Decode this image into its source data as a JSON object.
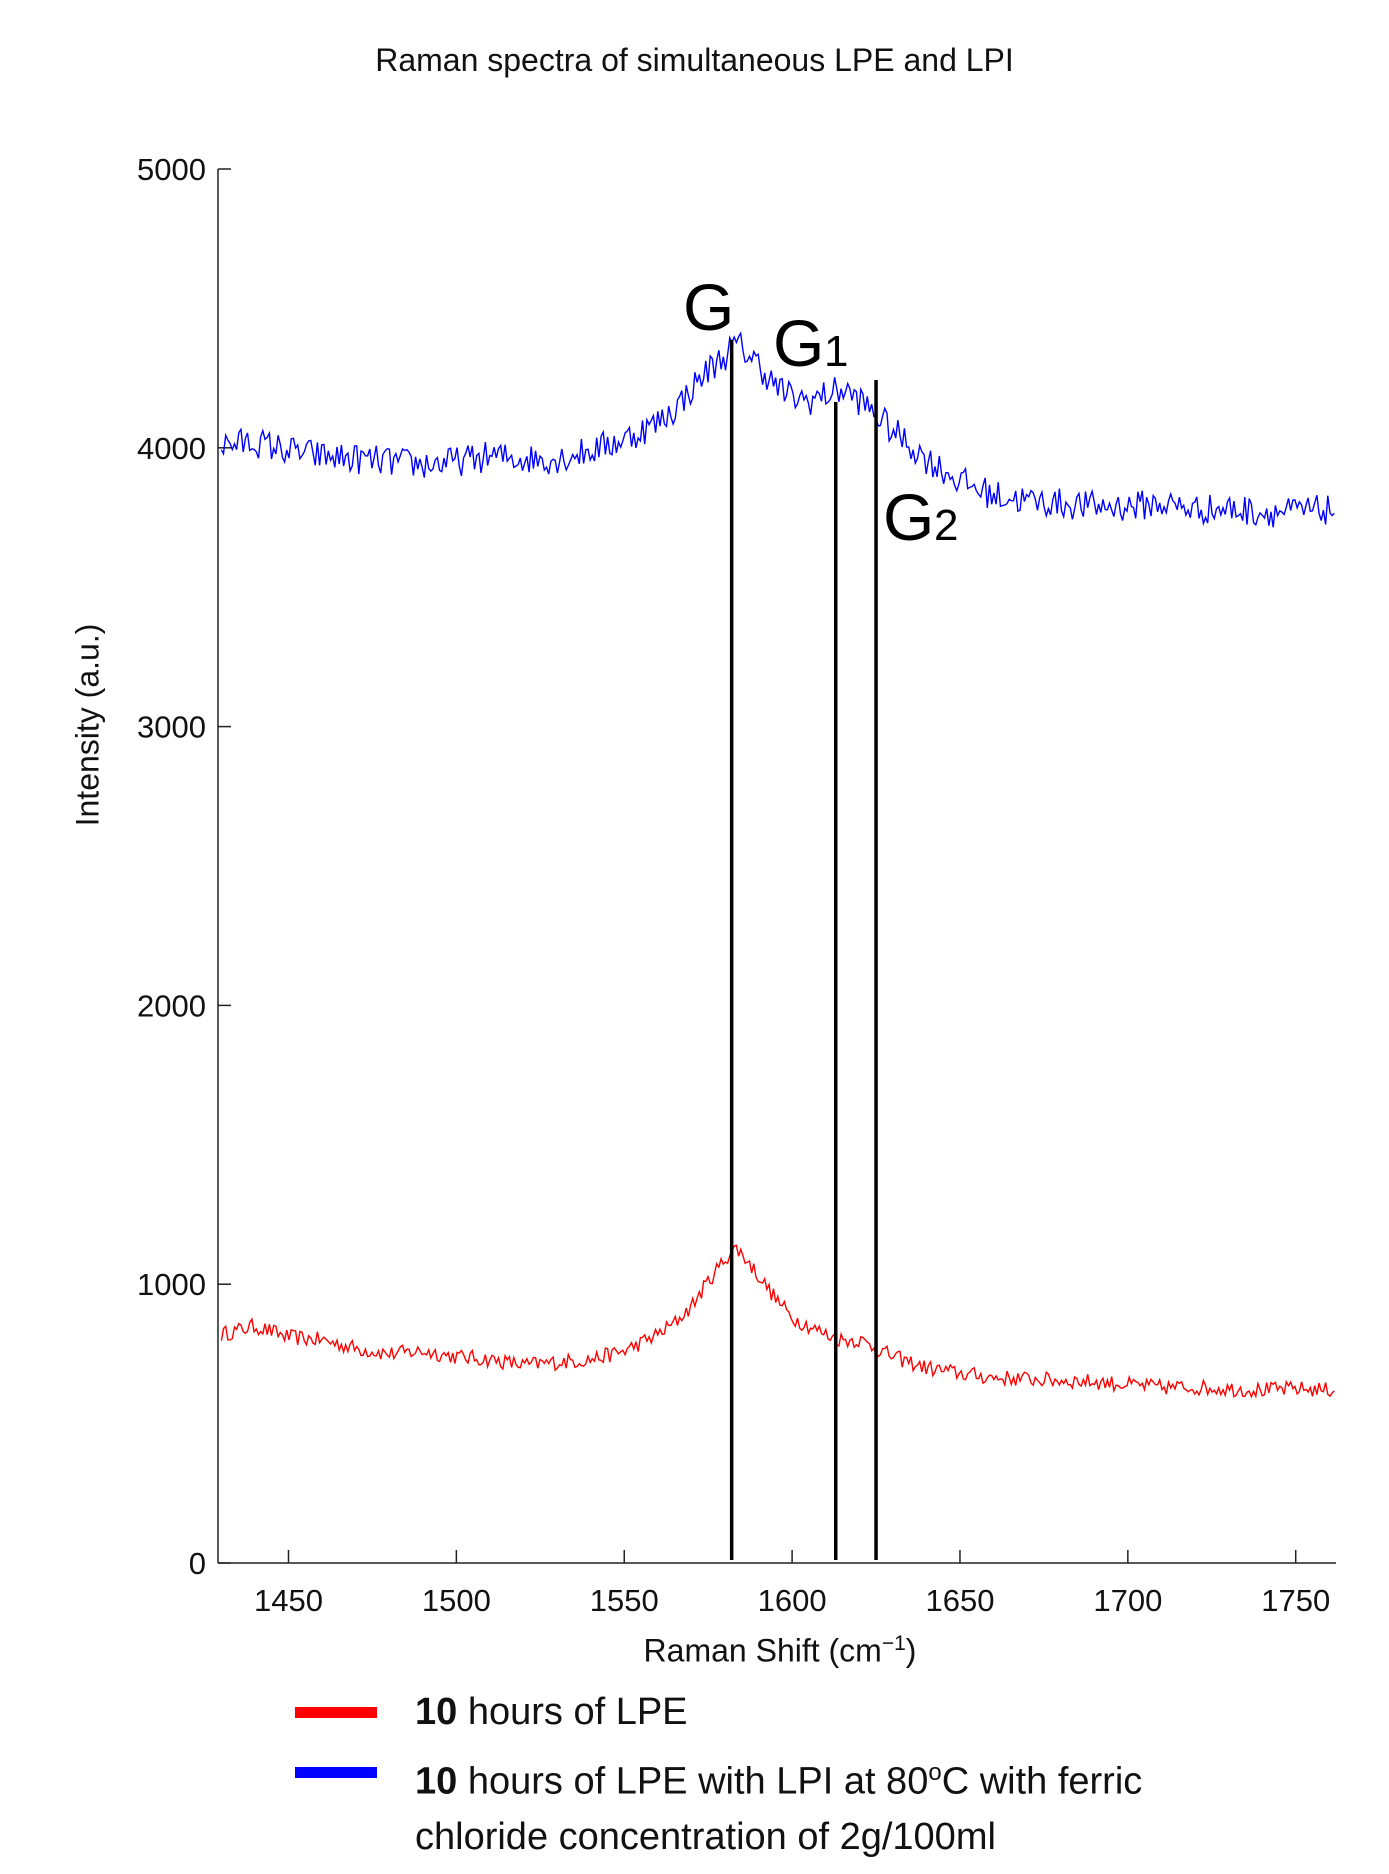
{
  "chart_data": {
    "type": "line",
    "title": "Raman spectra of simultaneous LPE and LPI",
    "xlabel": "Raman Shift (cm",
    "xlabel_exp": "−1",
    "xlabel_tail": ")",
    "ylabel": "Intensity (a.u.)",
    "xlim": [
      1429,
      1762
    ],
    "ylim": [
      0,
      5000
    ],
    "xticks": [
      1450,
      1500,
      1550,
      1600,
      1650,
      1700,
      1750
    ],
    "yticks": [
      0,
      1000,
      2000,
      3000,
      4000,
      5000
    ],
    "grid": false,
    "legend_position": "bottom",
    "series": [
      {
        "name_bold": "10",
        "name": " hours of LPE",
        "color": "#ff0000",
        "x": [
          1430,
          1440,
          1450,
          1460,
          1470,
          1480,
          1490,
          1500,
          1510,
          1520,
          1530,
          1540,
          1550,
          1555,
          1560,
          1565,
          1570,
          1575,
          1580,
          1583,
          1585,
          1590,
          1595,
          1600,
          1605,
          1610,
          1615,
          1620,
          1625,
          1630,
          1640,
          1650,
          1660,
          1670,
          1680,
          1690,
          1700,
          1710,
          1720,
          1730,
          1740,
          1750,
          1762
        ],
        "y": [
          820,
          850,
          810,
          800,
          770,
          750,
          760,
          740,
          730,
          710,
          720,
          730,
          760,
          790,
          820,
          860,
          920,
          1010,
          1090,
          1130,
          1110,
          1030,
          950,
          880,
          850,
          820,
          800,
          800,
          770,
          740,
          700,
          680,
          665,
          660,
          655,
          650,
          640,
          630,
          630,
          625,
          620,
          625,
          620
        ],
        "noise": 28
      },
      {
        "name_bold": "10",
        "name": " hours of LPE with LPI at 80",
        "name_sup": "o",
        "name_tail": "C with ferric chloride concentration of 2g/100ml",
        "color": "#0000ff",
        "x": [
          1430,
          1440,
          1450,
          1460,
          1470,
          1480,
          1490,
          1500,
          1510,
          1520,
          1530,
          1540,
          1550,
          1555,
          1560,
          1565,
          1570,
          1575,
          1580,
          1583,
          1585,
          1590,
          1595,
          1600,
          1605,
          1610,
          1615,
          1620,
          1625,
          1630,
          1640,
          1650,
          1660,
          1670,
          1680,
          1690,
          1700,
          1710,
          1720,
          1730,
          1740,
          1750,
          1762
        ],
        "y": [
          4010,
          4020,
          3990,
          3970,
          3960,
          3950,
          3940,
          3950,
          3970,
          3960,
          3960,
          3990,
          4030,
          4060,
          4090,
          4140,
          4210,
          4280,
          4330,
          4370,
          4360,
          4300,
          4220,
          4180,
          4170,
          4190,
          4210,
          4170,
          4120,
          4060,
          3960,
          3880,
          3830,
          3810,
          3800,
          3790,
          3790,
          3800,
          3780,
          3780,
          3770,
          3770,
          3780
        ],
        "noise": 55
      }
    ],
    "annotations": [
      {
        "label": "G",
        "sub": "",
        "x": 1582
      },
      {
        "label": "G",
        "sub": "1",
        "x": 1613
      },
      {
        "label": "G",
        "sub": "2",
        "x": 1625
      }
    ]
  }
}
